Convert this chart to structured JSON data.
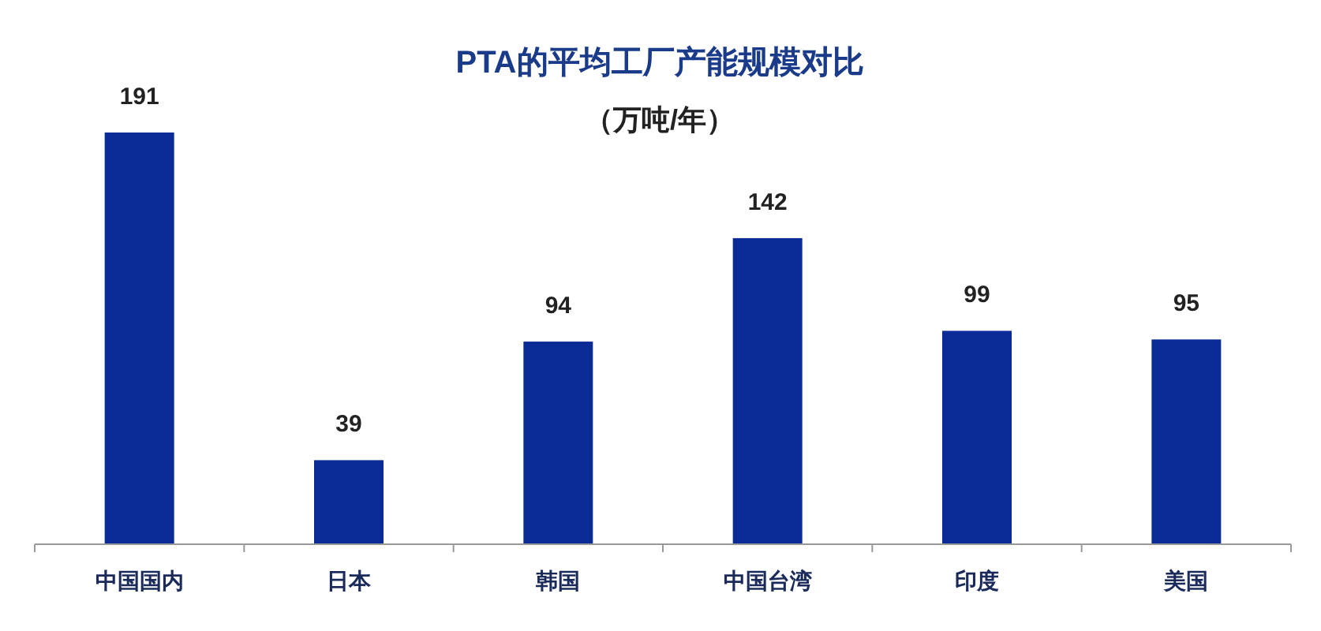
{
  "chart_data": {
    "type": "bar",
    "title": "PTA的平均工厂产能规模对比",
    "subtitle": "（万吨/年）",
    "categories": [
      "中国国内",
      "日本",
      "韩国",
      "中国台湾",
      "印度",
      "美国"
    ],
    "values": [
      191,
      39,
      94,
      142,
      99,
      95
    ],
    "color": "#0a2a96",
    "data_labels": true,
    "tick_labels": "x"
  }
}
